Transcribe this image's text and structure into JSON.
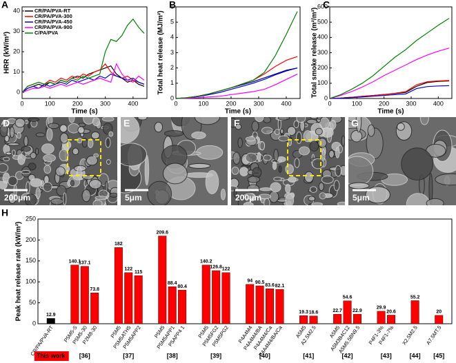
{
  "chart_data": [
    {
      "panel": "A",
      "type": "line",
      "xlabel": "Time (s)",
      "ylabel": "HRR (kW/m²)",
      "xlim": [
        0,
        450
      ],
      "ylim": [
        -3,
        42
      ],
      "xticks": [
        0,
        100,
        200,
        300,
        400
      ],
      "yticks": [
        0,
        10,
        20,
        30,
        40
      ],
      "legend": "upper left",
      "x": [
        0,
        20,
        40,
        60,
        80,
        100,
        120,
        140,
        160,
        180,
        200,
        220,
        240,
        260,
        280,
        300,
        320,
        340,
        360,
        380,
        400,
        420,
        440
      ],
      "series": [
        {
          "name": "CR/PA/PVA-RT",
          "color": "#000000",
          "values": [
            0,
            2,
            3,
            4,
            3,
            5,
            4,
            6,
            5,
            7,
            8,
            7,
            9,
            10,
            11,
            12,
            13,
            9,
            7,
            5,
            6,
            4,
            3
          ]
        },
        {
          "name": "CR/PA/PVA-300",
          "color": "#ff0000",
          "values": [
            0,
            3,
            4,
            5,
            4,
            6,
            5,
            7,
            6,
            8,
            7,
            9,
            8,
            10,
            11,
            14,
            10,
            8,
            7,
            8,
            6,
            5,
            4
          ]
        },
        {
          "name": "CR/PA/PVA-450",
          "color": "#0000cc",
          "values": [
            0,
            2,
            3,
            2,
            4,
            3,
            4,
            5,
            4,
            6,
            5,
            6,
            7,
            6,
            8,
            7,
            9,
            8,
            7,
            6,
            7,
            5,
            4
          ]
        },
        {
          "name": "CR/PA/PVA-900",
          "color": "#ff00ff",
          "values": [
            0,
            1,
            2,
            2,
            3,
            2,
            3,
            4,
            3,
            4,
            5,
            4,
            5,
            6,
            7,
            6,
            5,
            14,
            9,
            6,
            5,
            8,
            6
          ]
        },
        {
          "name": "C/PA/PVA",
          "color": "#007f00",
          "values": [
            0,
            3,
            4,
            5,
            4,
            5,
            4,
            6,
            5,
            7,
            6,
            8,
            7,
            8,
            9,
            20,
            26,
            25,
            28,
            33,
            36,
            32,
            29
          ]
        }
      ]
    },
    {
      "panel": "B",
      "type": "line",
      "xlabel": "Time (s)",
      "ylabel": "Total heat release (MJ/m²)",
      "xlim": [
        0,
        450
      ],
      "ylim": [
        0,
        6
      ],
      "xticks": [
        0,
        100,
        200,
        300,
        400
      ],
      "yticks": [
        0,
        1,
        2,
        3,
        4,
        5,
        6
      ],
      "x": [
        0,
        40,
        80,
        120,
        160,
        200,
        240,
        280,
        320,
        360,
        400,
        440
      ],
      "series": [
        {
          "color": "#000080",
          "values": [
            0,
            0.05,
            0.15,
            0.3,
            0.5,
            0.7,
            0.9,
            1.1,
            1.35,
            1.6,
            1.85,
            2.0
          ]
        },
        {
          "color": "#ff0000",
          "values": [
            0,
            0.05,
            0.15,
            0.3,
            0.5,
            0.7,
            0.95,
            1.2,
            1.6,
            2.1,
            2.5,
            2.75
          ]
        },
        {
          "color": "#0000cc",
          "values": [
            0,
            0.04,
            0.12,
            0.25,
            0.4,
            0.6,
            0.8,
            1.0,
            1.25,
            1.55,
            1.8,
            2.0
          ]
        },
        {
          "color": "#ff00ff",
          "values": [
            0,
            0.02,
            0.05,
            0.1,
            0.15,
            0.25,
            0.35,
            0.45,
            0.6,
            0.9,
            1.25,
            1.6
          ]
        },
        {
          "color": "#007f00",
          "values": [
            0,
            0.05,
            0.15,
            0.3,
            0.5,
            0.7,
            0.95,
            1.2,
            1.7,
            2.8,
            4.2,
            5.7
          ]
        }
      ]
    },
    {
      "panel": "C",
      "type": "line",
      "xlabel": "Time (s)",
      "ylabel": "Total smoke release (m²/m²)",
      "xlim": [
        0,
        450
      ],
      "ylim": [
        0,
        600
      ],
      "xticks": [
        0,
        100,
        200,
        300,
        400
      ],
      "yticks": [
        0,
        100,
        200,
        300,
        400,
        500,
        600
      ],
      "x": [
        0,
        40,
        80,
        120,
        160,
        200,
        240,
        280,
        320,
        360,
        400,
        440
      ],
      "series": [
        {
          "color": "#000000",
          "values": [
            0,
            3,
            8,
            14,
            20,
            26,
            32,
            40,
            80,
            105,
            112,
            115
          ]
        },
        {
          "color": "#ff0000",
          "values": [
            0,
            3,
            8,
            14,
            20,
            26,
            34,
            45,
            90,
            110,
            115,
            118
          ]
        },
        {
          "color": "#0000cc",
          "values": [
            0,
            2,
            6,
            10,
            15,
            20,
            25,
            30,
            65,
            78,
            82,
            84
          ]
        },
        {
          "color": "#ff00ff",
          "values": [
            0,
            20,
            45,
            75,
            110,
            150,
            185,
            220,
            255,
            285,
            310,
            330
          ]
        },
        {
          "color": "#007f00",
          "values": [
            0,
            25,
            60,
            100,
            150,
            210,
            270,
            320,
            380,
            430,
            480,
            525
          ]
        }
      ]
    },
    {
      "panel": "H",
      "type": "bar",
      "ylabel": "Peak heat release rate (kW/m²)",
      "ylim": [
        0,
        250
      ],
      "yticks": [
        0,
        50,
        100,
        150,
        200,
        250
      ],
      "groups": [
        {
          "reference": "This work",
          "color": "#000000",
          "bars": [
            {
              "label": "CR/PA/PVA-RT",
              "value": 12.9
            }
          ]
        },
        {
          "reference": "[36]",
          "color": "#ff0000",
          "bars": [
            {
              "label": "P5M5-S",
              "value": 140.1
            },
            {
              "label": "P5M5-30",
              "value": 137.1
            },
            {
              "label": "P2M8-30",
              "value": 73.8
            }
          ]
        },
        {
          "reference": "[37]",
          "color": "#ff0000",
          "bars": [
            {
              "label": "P5M5",
              "value": 182
            },
            {
              "label": "P5M5ATH5",
              "value": 122
            },
            {
              "label": "P5M5APP2",
              "value": 115
            }
          ]
        },
        {
          "reference": "[38]",
          "color": "#ff0000",
          "bars": [
            {
              "label": "P5M5",
              "value": 209.6
            },
            {
              "label": "P5M5APP1",
              "value": 88.4
            },
            {
              "label": "P5APP4 1",
              "value": 80.4
            }
          ]
        },
        {
          "reference": "[39]",
          "color": "#ff0000",
          "bars": [
            {
              "label": "P5M5",
              "value": 140.2
            },
            {
              "label": "P5M5FG2",
              "value": 126.8
            },
            {
              "label": "P5M5PG2",
              "value": 122
            }
          ]
        },
        {
          "reference": "[40]",
          "color": "#ff0000",
          "bars": [
            {
              "label": "P4A4M4",
              "value": 94
            },
            {
              "label": "P4A4M4/BA",
              "value": 90.5
            },
            {
              "label": "P4A4M4/Ca",
              "value": 83.6
            },
            {
              "label": "P4A4M4/BA/Ca",
              "value": 82.1
            }
          ]
        },
        {
          "reference": "[41]",
          "color": "#ff0000",
          "bars": [
            {
              "label": "A5M5",
              "value": 19.3
            },
            {
              "label": "A2.5M2.5",
              "value": 18.6
            }
          ]
        },
        {
          "reference": "[42]",
          "color": "#ff0000",
          "bars": [
            {
              "label": "A5M5",
              "value": 22.7
            },
            {
              "label": "A5M3B4C12",
              "value": 54.6
            },
            {
              "label": "A5M5.5BN9.5",
              "value": 22.9
            }
          ]
        },
        {
          "reference": "[43]",
          "color": "#ff0000",
          "bars": [
            {
              "label": "P4F1-3%",
              "value": 29.9
            },
            {
              "label": "P4F1-7%",
              "value": 20.6
            }
          ]
        },
        {
          "reference": "[44]",
          "color": "#ff0000",
          "bars": [
            {
              "label": "X2.5M2.5",
              "value": 55.2
            }
          ]
        },
        {
          "reference": "[45]",
          "color": "#ff0000",
          "bars": [
            {
              "label": "A7.5MT.5",
              "value": 20
            }
          ]
        }
      ]
    }
  ],
  "images": [
    {
      "panel": "D",
      "scale_bar": "200μm"
    },
    {
      "panel": "E",
      "scale_bar": "5μm"
    },
    {
      "panel": "F",
      "scale_bar": "200μm"
    },
    {
      "panel": "G",
      "scale_bar": "5μm"
    }
  ]
}
